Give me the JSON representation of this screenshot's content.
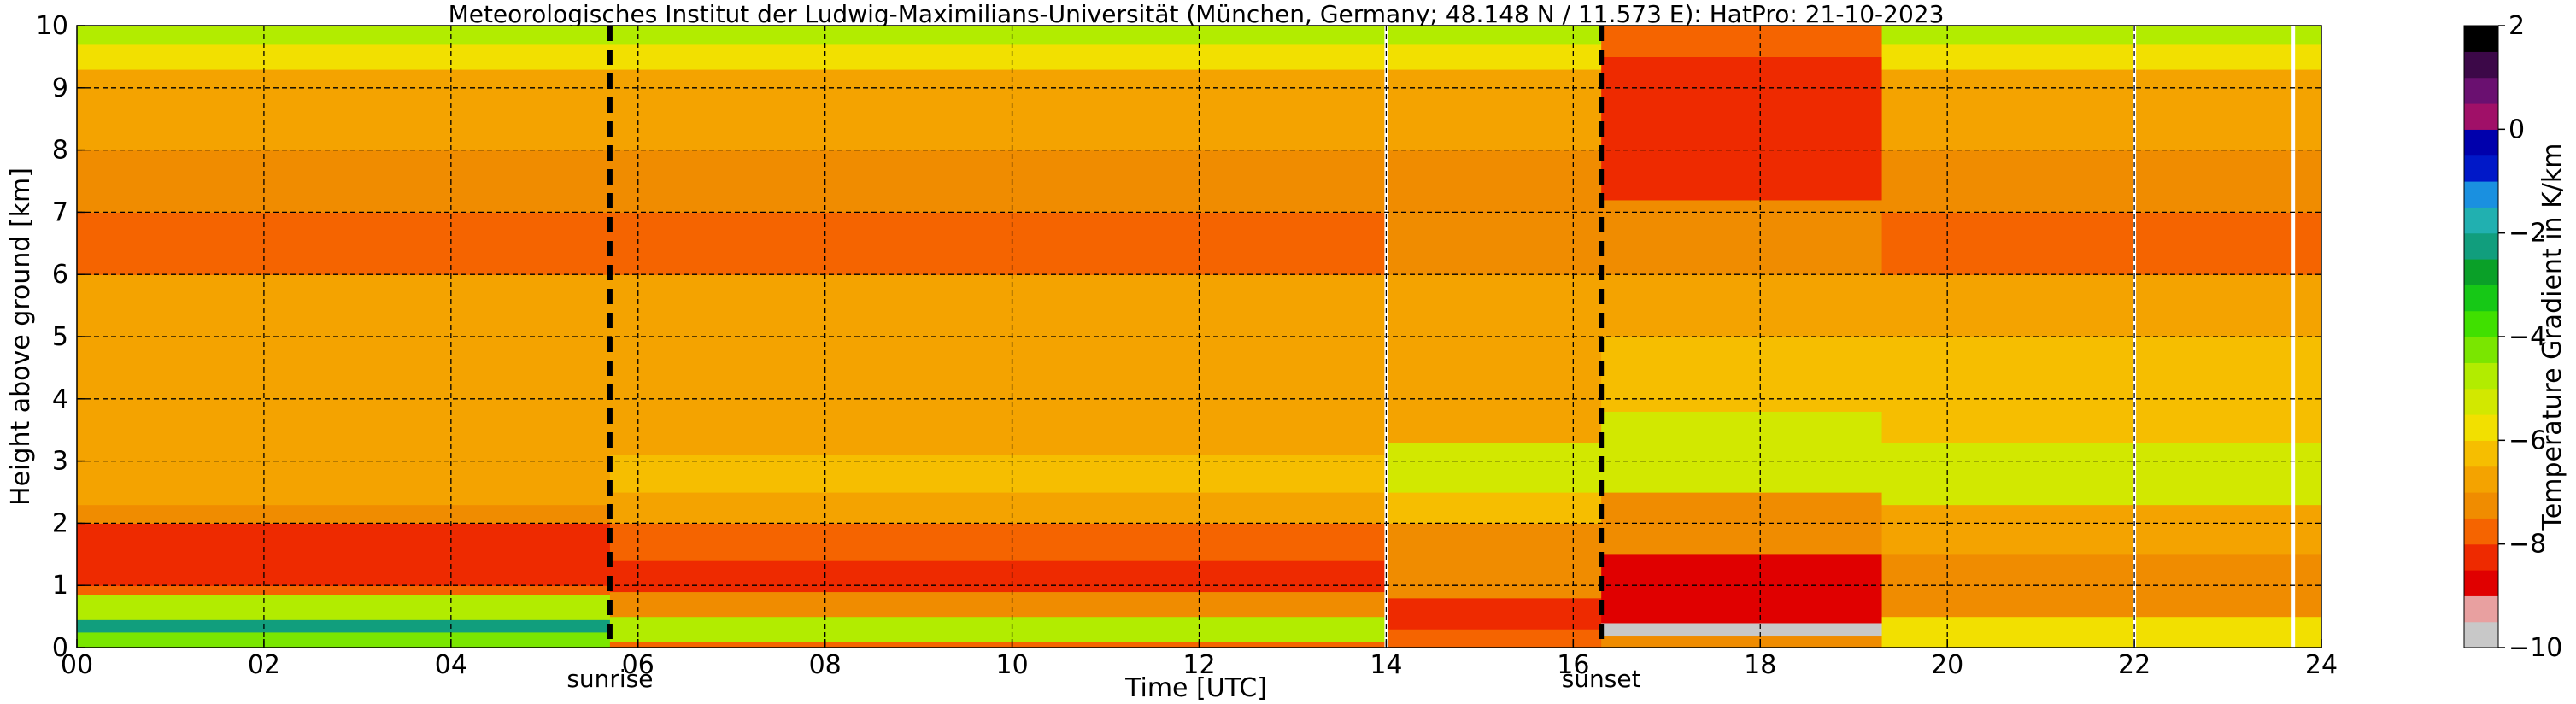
{
  "chart_data": {
    "type": "heatmap",
    "title": "Meteorologisches Institut der Ludwig-Maximilians-Universität (München, Germany; 48.148 N / 11.573 E):    HatPro: 21-10-2023",
    "xlabel": "Time [UTC]",
    "ylabel": "Height above ground [km]",
    "xlim": [
      0,
      24
    ],
    "ylim": [
      0,
      10
    ],
    "x_ticks": [
      0,
      2,
      4,
      6,
      8,
      10,
      12,
      14,
      16,
      18,
      20,
      22,
      24
    ],
    "x_tick_labels": [
      "00",
      "02",
      "04",
      "06",
      "08",
      "10",
      "12",
      "14",
      "16",
      "18",
      "20",
      "22",
      "24"
    ],
    "y_ticks": [
      0,
      1,
      2,
      3,
      4,
      5,
      6,
      7,
      8,
      9,
      10
    ],
    "y_tick_labels": [
      "0",
      "1",
      "2",
      "3",
      "4",
      "5",
      "6",
      "7",
      "8",
      "9",
      "10"
    ],
    "grid": true,
    "markers": [
      {
        "label": "sunrise",
        "time": 5.7
      },
      {
        "label": "sunset",
        "time": 16.3
      }
    ],
    "data_gaps": [
      14.0,
      22.0,
      23.7
    ],
    "colorbar": {
      "label": "Temperature Gradient in K/km",
      "range": [
        -10,
        2
      ],
      "ticks": [
        2,
        0,
        -2,
        -4,
        -6,
        -8,
        -10
      ],
      "tick_labels": [
        "2",
        "0",
        "−2",
        "−4",
        "−6",
        "−8",
        "−10"
      ],
      "colors": [
        "#c8c8c8",
        "#e8a0a0",
        "#e00000",
        "#ee2a00",
        "#f56400",
        "#f08c00",
        "#f4a300",
        "#f6be00",
        "#f2e000",
        "#d2e800",
        "#b2ec00",
        "#7ae600",
        "#40e000",
        "#16c816",
        "#0aa028",
        "#119e7d",
        "#21b0b0",
        "#1a90e0",
        "#0018c8",
        "#0000ac",
        "#a01068",
        "#6a1070",
        "#3c0848",
        "#000000"
      ]
    },
    "field": [
      {
        "t0": 0.0,
        "t1": 5.7,
        "layers": [
          {
            "h0": 0.0,
            "h1": 0.25,
            "value": -4.5
          },
          {
            "h0": 0.25,
            "h1": 0.45,
            "value": -2.5
          },
          {
            "h0": 0.45,
            "h1": 0.85,
            "value": -5.0
          },
          {
            "h0": 0.85,
            "h1": 1.0,
            "value": -7.6
          },
          {
            "h0": 1.0,
            "h1": 2.0,
            "value": -8.4
          },
          {
            "h0": 2.0,
            "h1": 2.3,
            "value": -7.4
          },
          {
            "h0": 2.3,
            "h1": 3.0,
            "value": -6.9
          },
          {
            "h0": 3.0,
            "h1": 5.0,
            "value": -6.6
          },
          {
            "h0": 5.0,
            "h1": 6.0,
            "value": -7.0
          },
          {
            "h0": 6.0,
            "h1": 7.0,
            "value": -7.6
          },
          {
            "h0": 7.0,
            "h1": 8.0,
            "value": -7.4
          },
          {
            "h0": 8.0,
            "h1": 9.0,
            "value": -7.0
          },
          {
            "h0": 9.0,
            "h1": 9.3,
            "value": -6.6
          },
          {
            "h0": 9.3,
            "h1": 9.7,
            "value": -5.7
          },
          {
            "h0": 9.7,
            "h1": 10.0,
            "value": -4.8
          }
        ]
      },
      {
        "t0": 5.7,
        "t1": 14.0,
        "layers": [
          {
            "h0": 0.0,
            "h1": 0.1,
            "value": -7.8
          },
          {
            "h0": 0.1,
            "h1": 0.5,
            "value": -5.0
          },
          {
            "h0": 0.5,
            "h1": 0.9,
            "value": -7.2
          },
          {
            "h0": 0.9,
            "h1": 1.4,
            "value": -8.2
          },
          {
            "h0": 1.4,
            "h1": 2.0,
            "value": -7.6
          },
          {
            "h0": 2.0,
            "h1": 2.5,
            "value": -7.0
          },
          {
            "h0": 2.5,
            "h1": 3.1,
            "value": -6.3
          },
          {
            "h0": 3.1,
            "h1": 5.0,
            "value": -6.6
          },
          {
            "h0": 5.0,
            "h1": 6.0,
            "value": -7.0
          },
          {
            "h0": 6.0,
            "h1": 7.0,
            "value": -7.6
          },
          {
            "h0": 7.0,
            "h1": 8.0,
            "value": -7.4
          },
          {
            "h0": 8.0,
            "h1": 9.0,
            "value": -7.0
          },
          {
            "h0": 9.0,
            "h1": 9.3,
            "value": -6.6
          },
          {
            "h0": 9.3,
            "h1": 9.7,
            "value": -5.7
          },
          {
            "h0": 9.7,
            "h1": 10.0,
            "value": -4.8
          }
        ]
      },
      {
        "t0": 14.0,
        "t1": 16.3,
        "layers": [
          {
            "h0": 0.0,
            "h1": 0.3,
            "value": -7.8
          },
          {
            "h0": 0.3,
            "h1": 0.8,
            "value": -8.3
          },
          {
            "h0": 0.8,
            "h1": 2.0,
            "value": -7.2
          },
          {
            "h0": 2.0,
            "h1": 2.5,
            "value": -6.5
          },
          {
            "h0": 2.5,
            "h1": 3.3,
            "value": -5.4
          },
          {
            "h0": 3.3,
            "h1": 5.0,
            "value": -6.6
          },
          {
            "h0": 5.0,
            "h1": 6.0,
            "value": -7.0
          },
          {
            "h0": 6.0,
            "h1": 7.0,
            "value": -7.5
          },
          {
            "h0": 7.0,
            "h1": 8.0,
            "value": -7.3
          },
          {
            "h0": 8.0,
            "h1": 9.0,
            "value": -7.0
          },
          {
            "h0": 9.0,
            "h1": 9.3,
            "value": -6.6
          },
          {
            "h0": 9.3,
            "h1": 9.7,
            "value": -5.7
          },
          {
            "h0": 9.7,
            "h1": 10.0,
            "value": -4.8
          }
        ]
      },
      {
        "t0": 16.3,
        "t1": 19.3,
        "layers": [
          {
            "h0": 0.0,
            "h1": 0.2,
            "value": -7.2
          },
          {
            "h0": 0.2,
            "h1": 0.4,
            "value": -9.8
          },
          {
            "h0": 0.4,
            "h1": 1.5,
            "value": -8.6
          },
          {
            "h0": 1.5,
            "h1": 2.5,
            "value": -7.3
          },
          {
            "h0": 2.5,
            "h1": 3.8,
            "value": -5.4
          },
          {
            "h0": 3.8,
            "h1": 5.0,
            "value": -6.5
          },
          {
            "h0": 5.0,
            "h1": 6.0,
            "value": -7.0
          },
          {
            "h0": 6.0,
            "h1": 7.2,
            "value": -7.5
          },
          {
            "h0": 7.2,
            "h1": 9.5,
            "value": -8.4
          },
          {
            "h0": 9.5,
            "h1": 10.0,
            "value": -7.6
          }
        ]
      },
      {
        "t0": 19.3,
        "t1": 24.0,
        "layers": [
          {
            "h0": 0.0,
            "h1": 0.5,
            "value": -5.6
          },
          {
            "h0": 0.5,
            "h1": 1.5,
            "value": -7.2
          },
          {
            "h0": 1.5,
            "h1": 2.3,
            "value": -6.8
          },
          {
            "h0": 2.3,
            "h1": 3.3,
            "value": -5.1
          },
          {
            "h0": 3.3,
            "h1": 5.0,
            "value": -6.5
          },
          {
            "h0": 5.0,
            "h1": 6.0,
            "value": -7.0
          },
          {
            "h0": 6.0,
            "h1": 7.0,
            "value": -7.6
          },
          {
            "h0": 7.0,
            "h1": 8.0,
            "value": -7.4
          },
          {
            "h0": 8.0,
            "h1": 9.0,
            "value": -7.0
          },
          {
            "h0": 9.0,
            "h1": 9.3,
            "value": -6.6
          },
          {
            "h0": 9.3,
            "h1": 9.7,
            "value": -5.7
          },
          {
            "h0": 9.7,
            "h1": 10.0,
            "value": -4.8
          }
        ]
      }
    ]
  }
}
